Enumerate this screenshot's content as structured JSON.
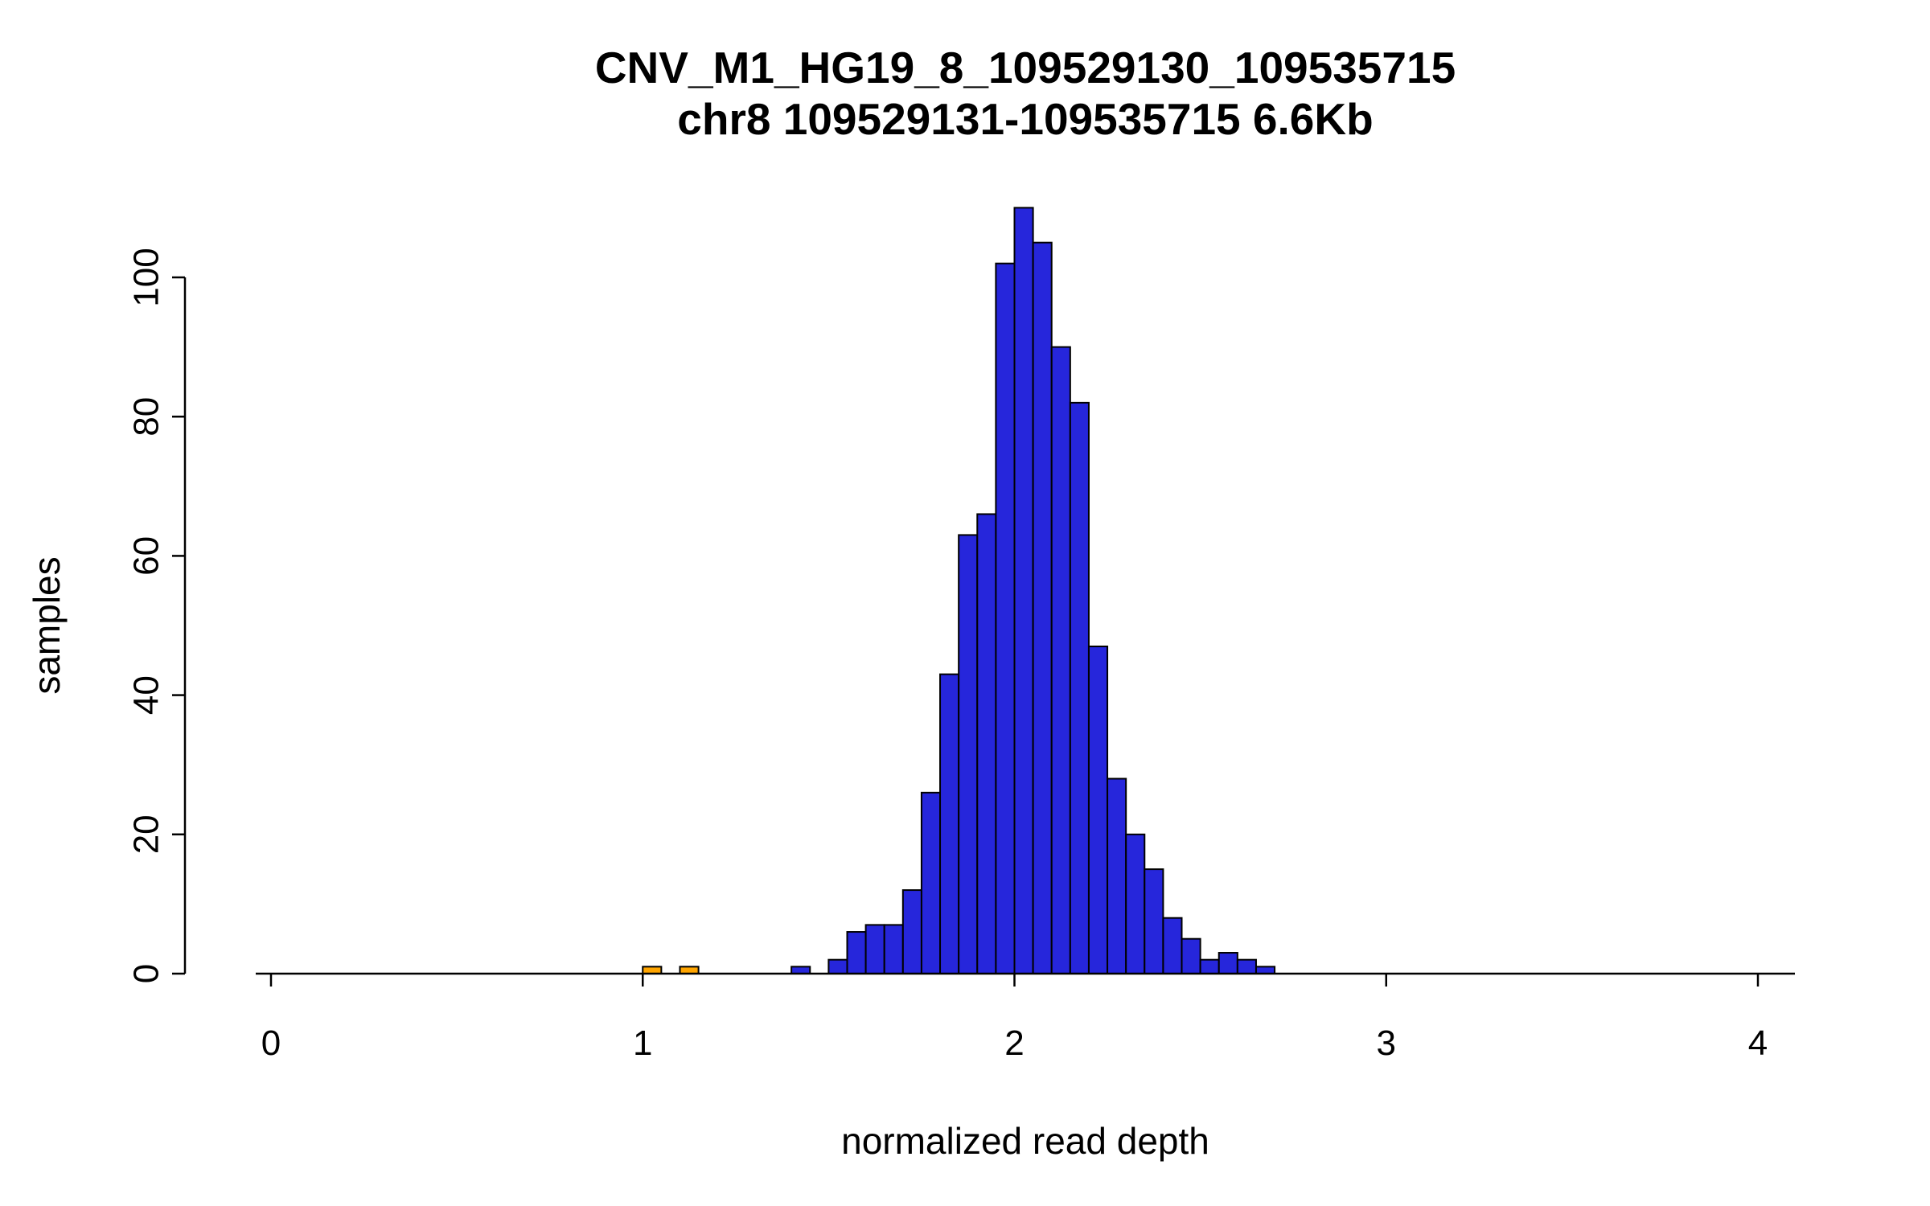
{
  "chart_data": {
    "type": "bar",
    "subtype": "histogram",
    "title": "CNV_M1_HG19_8_109529130_109535715",
    "subtitle": "chr8 109529131-109535715 6.6Kb",
    "xlabel": "normalized read depth",
    "ylabel": "samples",
    "xlim": [
      0,
      4.1
    ],
    "ylim": [
      0,
      110
    ],
    "x_ticks": [
      0,
      1,
      2,
      3,
      4
    ],
    "y_ticks": [
      0,
      20,
      40,
      60,
      80,
      100
    ],
    "grid": false,
    "legend": "none",
    "bin_width": 0.05,
    "bar_fill": "#2626DB",
    "bar_fill_outlier": "#FFA500",
    "bar_stroke": "#000000",
    "axis_color": "#000000",
    "bins": [
      {
        "x": 1.0,
        "count": 1,
        "outlier": true
      },
      {
        "x": 1.1,
        "count": 1,
        "outlier": true
      },
      {
        "x": 1.4,
        "count": 1
      },
      {
        "x": 1.5,
        "count": 2
      },
      {
        "x": 1.55,
        "count": 6
      },
      {
        "x": 1.6,
        "count": 7
      },
      {
        "x": 1.65,
        "count": 7
      },
      {
        "x": 1.7,
        "count": 12
      },
      {
        "x": 1.75,
        "count": 26
      },
      {
        "x": 1.8,
        "count": 43
      },
      {
        "x": 1.85,
        "count": 63
      },
      {
        "x": 1.9,
        "count": 66
      },
      {
        "x": 1.95,
        "count": 102
      },
      {
        "x": 2.0,
        "count": 110
      },
      {
        "x": 2.05,
        "count": 105
      },
      {
        "x": 2.1,
        "count": 90
      },
      {
        "x": 2.15,
        "count": 82
      },
      {
        "x": 2.2,
        "count": 47
      },
      {
        "x": 2.25,
        "count": 28
      },
      {
        "x": 2.3,
        "count": 20
      },
      {
        "x": 2.35,
        "count": 15
      },
      {
        "x": 2.4,
        "count": 8
      },
      {
        "x": 2.45,
        "count": 5
      },
      {
        "x": 2.5,
        "count": 2
      },
      {
        "x": 2.55,
        "count": 3
      },
      {
        "x": 2.6,
        "count": 2
      },
      {
        "x": 2.65,
        "count": 1
      }
    ]
  }
}
